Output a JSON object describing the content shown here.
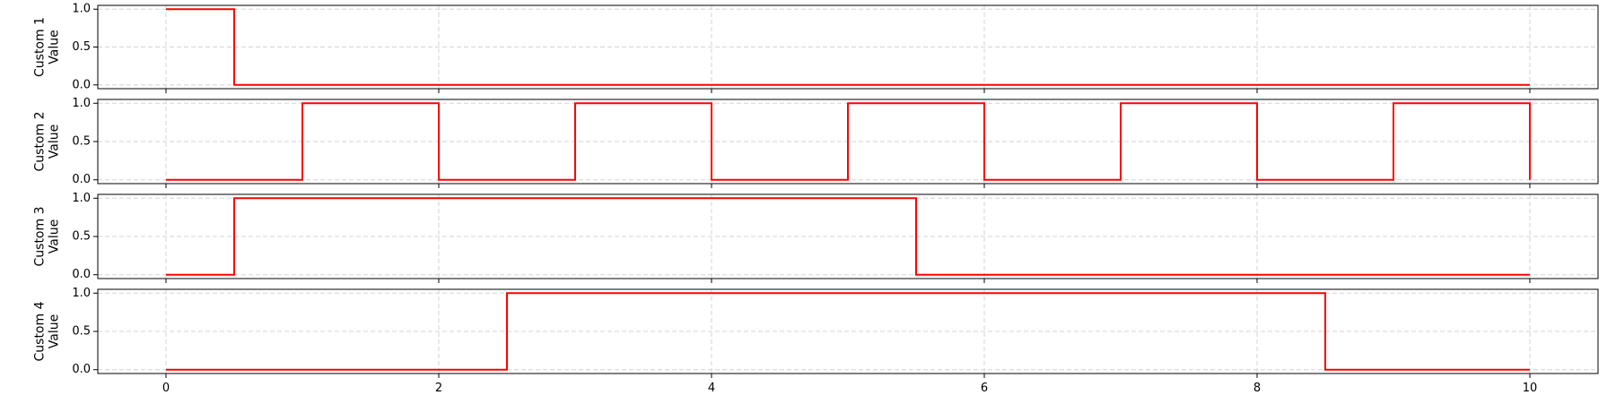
{
  "chart_data": [
    {
      "type": "line",
      "step": true,
      "ylabel": [
        "Custom 1",
        "Value"
      ],
      "xlim": [
        -0.5,
        10.5
      ],
      "ylim": [
        -0.05,
        1.05
      ],
      "xticks": [
        "0",
        "2",
        "4",
        "6",
        "8",
        "10"
      ],
      "yticks": [
        "0.0",
        "0.5",
        "1.0"
      ],
      "grid": true,
      "color": "#ff0000",
      "series": [
        {
          "x": [
            0,
            0.5,
            0.5,
            10
          ],
          "y": [
            1,
            1,
            0,
            0
          ]
        }
      ]
    },
    {
      "type": "line",
      "step": true,
      "ylabel": [
        "Custom 2",
        "Value"
      ],
      "xlim": [
        -0.5,
        10.5
      ],
      "ylim": [
        -0.05,
        1.05
      ],
      "xticks": [
        "0",
        "2",
        "4",
        "6",
        "8",
        "10"
      ],
      "yticks": [
        "0.0",
        "0.5",
        "1.0"
      ],
      "grid": true,
      "color": "#ff0000",
      "series": [
        {
          "x": [
            0,
            1,
            1,
            2,
            2,
            3,
            3,
            4,
            4,
            5,
            5,
            6,
            6,
            7,
            7,
            8,
            8,
            9,
            9,
            10,
            10
          ],
          "y": [
            0,
            0,
            1,
            1,
            0,
            0,
            1,
            1,
            0,
            0,
            1,
            1,
            0,
            0,
            1,
            1,
            0,
            0,
            1,
            1,
            0
          ]
        }
      ]
    },
    {
      "type": "line",
      "step": true,
      "ylabel": [
        "Custom 3",
        "Value"
      ],
      "xlim": [
        -0.5,
        10.5
      ],
      "ylim": [
        -0.05,
        1.05
      ],
      "xticks": [
        "0",
        "2",
        "4",
        "6",
        "8",
        "10"
      ],
      "yticks": [
        "0.0",
        "0.5",
        "1.0"
      ],
      "grid": true,
      "color": "#ff0000",
      "series": [
        {
          "x": [
            0,
            0.5,
            0.5,
            5.5,
            5.5,
            10
          ],
          "y": [
            0,
            0,
            1,
            1,
            0,
            0
          ]
        }
      ]
    },
    {
      "type": "line",
      "step": true,
      "ylabel": [
        "Custom 4",
        "Value"
      ],
      "xlim": [
        -0.5,
        10.5
      ],
      "ylim": [
        -0.05,
        1.05
      ],
      "xticks": [
        "0",
        "2",
        "4",
        "6",
        "8",
        "10"
      ],
      "yticks": [
        "0.0",
        "0.5",
        "1.0"
      ],
      "grid": true,
      "color": "#ff0000",
      "series": [
        {
          "x": [
            0,
            2.5,
            2.5,
            8.5,
            8.5,
            10
          ],
          "y": [
            0,
            0,
            1,
            1,
            0,
            0
          ]
        }
      ]
    }
  ]
}
